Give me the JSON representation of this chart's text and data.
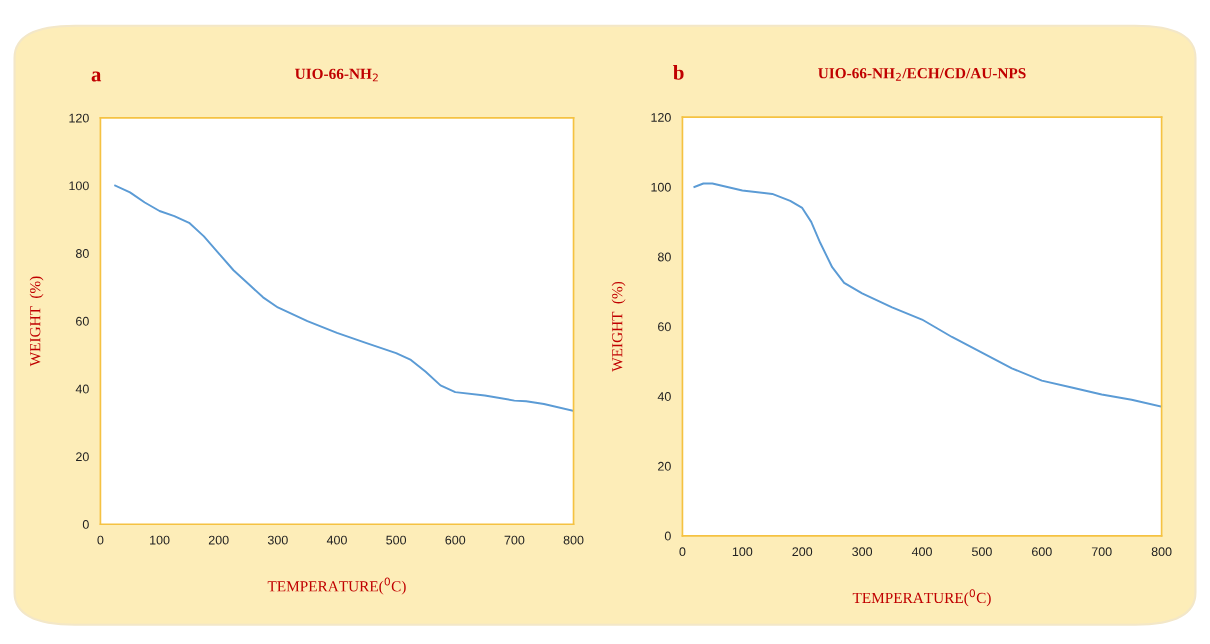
{
  "chart_data": [
    {
      "type": "line",
      "title": "UIO-66-NH$_{2}$",
      "annotations": [
        "a"
      ],
      "xlabel": "TEMPERATURE($^{0}$C)",
      "ylabel": "WEIGHT  (%)",
      "x": [
        25,
        50,
        75,
        100,
        125,
        150,
        175,
        200,
        225,
        250,
        275,
        300,
        350,
        400,
        450,
        500,
        525,
        550,
        575,
        600,
        650,
        700,
        720,
        750,
        800
      ],
      "series": [
        {
          "color": "#5b9bd5",
          "values": [
            100,
            98,
            95,
            92.5,
            91,
            89,
            85,
            80,
            75,
            71,
            67,
            64,
            60,
            56.5,
            53.5,
            50.5,
            48.5,
            45,
            41,
            39,
            38,
            36.5,
            36.3,
            35.5,
            33.5
          ]
        }
      ],
      "xlim": [
        0,
        800
      ],
      "xticks": [
        0,
        100,
        200,
        300,
        400,
        500,
        600,
        700,
        800
      ],
      "ylim": [
        0,
        120
      ],
      "yticks": [
        0,
        20,
        40,
        60,
        80,
        100,
        120
      ],
      "grid": false,
      "legend": false
    },
    {
      "type": "line",
      "title": "UIO-66-NH$_{2}$/ECH/CD/AU-NPS",
      "annotations": [
        "b"
      ],
      "xlabel": "TEMPERATURE($^{0}$C)",
      "ylabel": "WEIGHT  (%)",
      "x": [
        20,
        35,
        50,
        75,
        100,
        150,
        180,
        200,
        215,
        230,
        250,
        270,
        300,
        350,
        400,
        420,
        450,
        500,
        550,
        600,
        650,
        700,
        750,
        800
      ],
      "series": [
        {
          "color": "#5b9bd5",
          "values": [
            100,
            101,
            101,
            100,
            99,
            98,
            96,
            94,
            90,
            84,
            77,
            72.5,
            69.5,
            65.5,
            62,
            60,
            57,
            52.5,
            48,
            44.5,
            42.5,
            40.5,
            39,
            37
          ]
        }
      ],
      "xlim": [
        0,
        800
      ],
      "xticks": [
        0,
        100,
        200,
        300,
        400,
        500,
        600,
        700,
        800
      ],
      "ylim": [
        0,
        120
      ],
      "yticks": [
        0,
        20,
        40,
        60,
        80,
        100,
        120
      ],
      "grid": false,
      "legend": false
    }
  ]
}
